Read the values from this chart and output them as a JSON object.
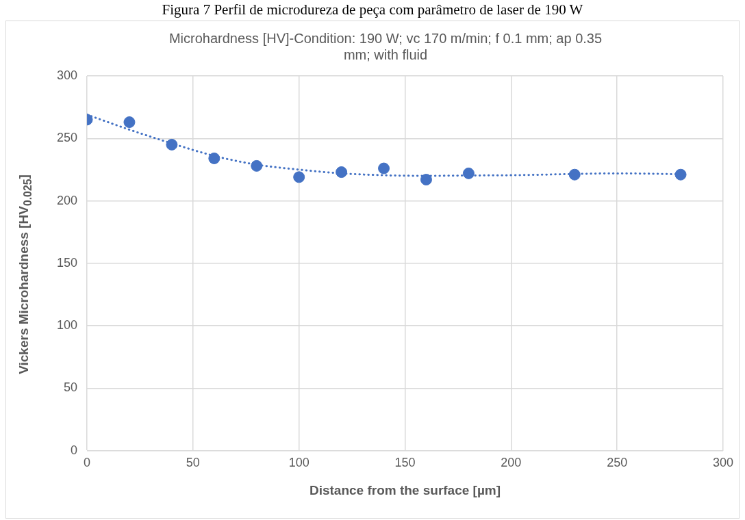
{
  "chart_data": {
    "type": "scatter",
    "title": "Microhardness [HV]-Condition: 190 W; vc 170 m/min; f 0.1 mm; ap 0.35 mm; with fluid",
    "xlabel": "Distance from the surface [µm]",
    "ylabel": "Vickers Microhardness [HV$_{0.025}$]",
    "annotations": [
      "Figura 7 Perfil de microdureza de peça com parâmetro de laser de 190 W"
    ],
    "xlim": [
      0,
      300
    ],
    "xticks": [
      0,
      50,
      100,
      150,
      200,
      250,
      300
    ],
    "ylim": [
      0,
      300
    ],
    "yticks": [
      0,
      50,
      100,
      150,
      200,
      250,
      300
    ],
    "grid": true,
    "legend": false,
    "series": [
      {
        "type": "scatter",
        "color": "#4472c4",
        "marker": "circle",
        "x": [
          0,
          20,
          40,
          60,
          80,
          100,
          120,
          140,
          160,
          180,
          230,
          280
        ],
        "values": [
          265,
          263,
          245,
          234,
          228,
          219,
          223,
          226,
          217,
          222,
          221,
          221
        ]
      },
      {
        "type": "line",
        "color": "#4472c4",
        "line_style": "dotted",
        "marker": "none",
        "x": [
          0,
          20,
          40,
          60,
          80,
          100,
          120,
          140,
          160,
          180,
          200,
          230,
          250,
          280
        ],
        "values": [
          269,
          257,
          246,
          236,
          229,
          225,
          222,
          220.5,
          220,
          220.3,
          220.5,
          221.5,
          222,
          221.3
        ]
      }
    ]
  }
}
